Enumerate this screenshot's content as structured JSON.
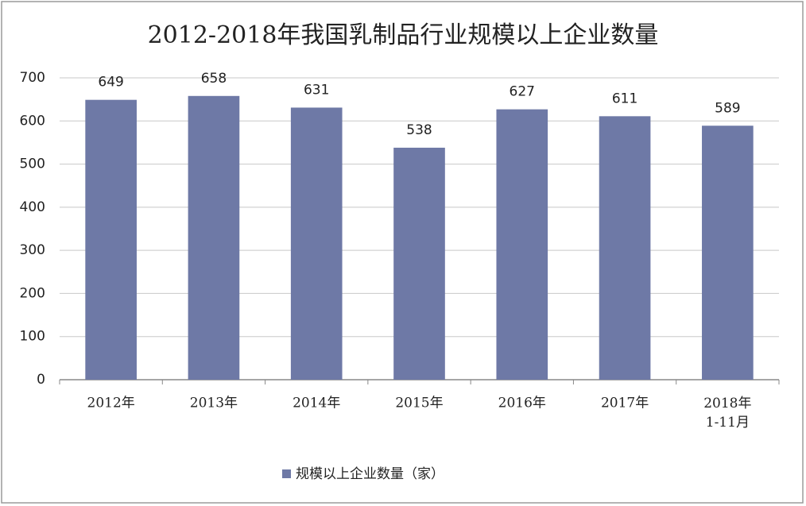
{
  "chart_data": {
    "type": "bar",
    "title": "2012-2018年我国乳制品行业规模以上企业数量",
    "categories": [
      "2012年",
      "2013年",
      "2014年",
      "2015年",
      "2016年",
      "2017年",
      "2018年\n1-11月"
    ],
    "series": [
      {
        "name": "规模以上企业数量（家）",
        "color": "#6e79a6",
        "values": [
          649,
          658,
          631,
          538,
          627,
          611,
          589
        ]
      }
    ],
    "ylim": [
      0,
      700
    ],
    "yticks": [
      0,
      100,
      200,
      300,
      400,
      500,
      600,
      700
    ],
    "grid": true,
    "legend": "bottom"
  }
}
